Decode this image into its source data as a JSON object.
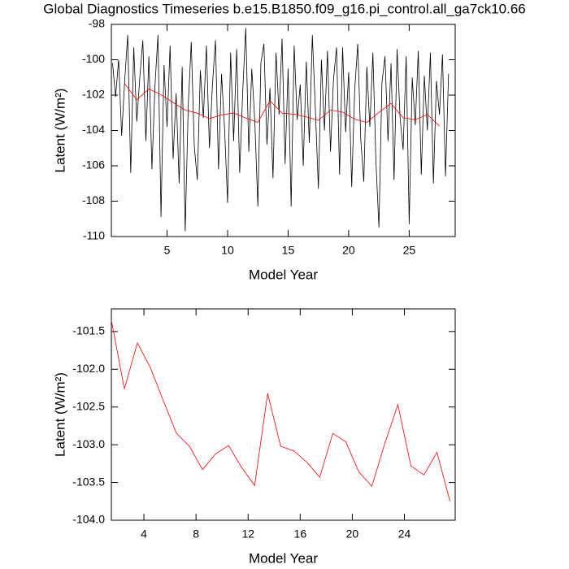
{
  "chart_data": [
    {
      "type": "line",
      "title": "Global Diagnostics Timeseries b.e15.B1850.f09_g16.pi_control.all_ga7ck10.66",
      "x_label": "Model Year",
      "y_label": "Latent (W/m²)",
      "xlim": [
        0.4,
        28.8
      ],
      "ylim": [
        -110,
        -98
      ],
      "xticks": [
        5,
        10,
        15,
        20,
        25
      ],
      "yticks": [
        -110,
        -108,
        -106,
        -104,
        -102,
        -100,
        -98
      ],
      "series": [
        {
          "color": "#000000",
          "x": [
            0.5,
            0.75,
            1,
            1.25,
            1.5,
            1.75,
            2,
            2.25,
            2.5,
            2.75,
            3,
            3.25,
            3.5,
            3.75,
            4,
            4.25,
            4.5,
            4.75,
            5,
            5.25,
            5.5,
            5.75,
            6,
            6.25,
            6.5,
            6.75,
            7,
            7.25,
            7.5,
            7.75,
            8,
            8.25,
            8.5,
            8.75,
            9,
            9.25,
            9.5,
            9.75,
            10,
            10.25,
            10.5,
            10.75,
            11,
            11.25,
            11.5,
            11.75,
            12,
            12.25,
            12.5,
            12.75,
            13,
            13.25,
            13.5,
            13.75,
            14,
            14.25,
            14.5,
            14.75,
            15,
            15.25,
            15.5,
            15.75,
            16,
            16.25,
            16.5,
            16.75,
            17,
            17.25,
            17.5,
            17.75,
            18,
            18.25,
            18.5,
            18.75,
            19,
            19.25,
            19.5,
            19.75,
            20,
            20.25,
            20.5,
            20.75,
            21,
            21.25,
            21.5,
            21.75,
            22,
            22.25,
            22.5,
            22.75,
            23,
            23.25,
            23.5,
            23.75,
            24,
            24.25,
            24.5,
            24.75,
            25,
            25.25,
            25.5,
            25.75,
            26,
            26.25,
            26.5,
            26.75,
            27,
            27.25,
            27.5,
            27.75,
            28,
            28.25
          ],
          "values": [
            -100.2,
            -102.1,
            -100.0,
            -104.3,
            -101.2,
            -98.6,
            -106.4,
            -99.3,
            -103.5,
            -101.0,
            -98.9,
            -104.6,
            -99.8,
            -106.2,
            -101.5,
            -98.6,
            -108.9,
            -100.3,
            -103.8,
            -99.2,
            -105.6,
            -101.9,
            -107.0,
            -100.4,
            -109.7,
            -102.6,
            -99.0,
            -104.9,
            -106.8,
            -100.6,
            -103.3,
            -99.2,
            -105.0,
            -101.4,
            -98.9,
            -106.2,
            -100.8,
            -103.9,
            -108.1,
            -99.6,
            -104.6,
            -99.4,
            -106.4,
            -101.8,
            -98.2,
            -105.2,
            -100.5,
            -103.5,
            -108.3,
            -100.2,
            -99.1,
            -104.8,
            -101.6,
            -106.7,
            -99.6,
            -103.1,
            -98.8,
            -105.9,
            -100.5,
            -108.3,
            -99.2,
            -103.4,
            -101.4,
            -106.0,
            -100.1,
            -104.7,
            -98.6,
            -102.8,
            -107.3,
            -100.0,
            -104.0,
            -99.5,
            -105.2,
            -101.1,
            -99.3,
            -106.5,
            -99.3,
            -104.1,
            -100.7,
            -107.2,
            -101.7,
            -99.1,
            -104.5,
            -106.9,
            -100.4,
            -103.8,
            -99.6,
            -105.7,
            -109.5,
            -101.3,
            -99.8,
            -104.6,
            -100.2,
            -106.8,
            -99.4,
            -103.3,
            -105.1,
            -99.8,
            -109.3,
            -101.0,
            -103.7,
            -99.5,
            -106.5,
            -100.9,
            -104.0,
            -99.6,
            -107.0,
            -101.2,
            -103.1,
            -99.7,
            -106.6,
            -100.8
          ]
        },
        {
          "color": "#ff0000",
          "x": [
            1.5,
            2.5,
            3.5,
            4.5,
            5.5,
            6.5,
            7.5,
            8.5,
            9.5,
            10.5,
            11.5,
            12.5,
            13.5,
            14.5,
            15.5,
            16.5,
            17.5,
            18.5,
            19.5,
            20.5,
            21.5,
            22.5,
            23.5,
            24.5,
            25.5,
            26.5,
            27.5
          ],
          "values": [
            -101.35,
            -102.26,
            -101.65,
            -101.98,
            -102.42,
            -102.85,
            -103.02,
            -103.33,
            -103.12,
            -103.01,
            -103.3,
            -103.54,
            -102.32,
            -103.02,
            -103.08,
            -103.23,
            -103.43,
            -102.85,
            -102.96,
            -103.36,
            -103.55,
            -102.98,
            -102.47,
            -103.28,
            -103.4,
            -103.1,
            -103.75
          ]
        }
      ]
    },
    {
      "type": "line",
      "x_label": "Model Year",
      "y_label": "Latent (W/m²)",
      "xlim": [
        1.5,
        27.9
      ],
      "ylim": [
        -104,
        -101.2
      ],
      "xticks": [
        4,
        8,
        12,
        16,
        20,
        24
      ],
      "yticks": [
        {
          "value": -104,
          "label": "-104.0"
        },
        -103.5,
        {
          "value": -103,
          "label": "-103.0"
        },
        -102.5,
        {
          "value": -102,
          "label": "-102.0"
        },
        -101.5
      ],
      "series": [
        {
          "color": "#ff0000",
          "x": [
            1.5,
            2.5,
            3.5,
            4.5,
            5.5,
            6.5,
            7.5,
            8.5,
            9.5,
            10.5,
            11.5,
            12.5,
            13.5,
            14.5,
            15.5,
            16.5,
            17.5,
            18.5,
            19.5,
            20.5,
            21.5,
            22.5,
            23.5,
            24.5,
            25.5,
            26.5,
            27.5
          ],
          "values": [
            -101.35,
            -102.26,
            -101.65,
            -101.98,
            -102.42,
            -102.85,
            -103.02,
            -103.33,
            -103.12,
            -103.01,
            -103.3,
            -103.54,
            -102.32,
            -103.02,
            -103.08,
            -103.23,
            -103.43,
            -102.85,
            -102.96,
            -103.36,
            -103.55,
            -102.98,
            -102.47,
            -103.28,
            -103.4,
            -103.1,
            -103.75
          ]
        }
      ]
    }
  ]
}
